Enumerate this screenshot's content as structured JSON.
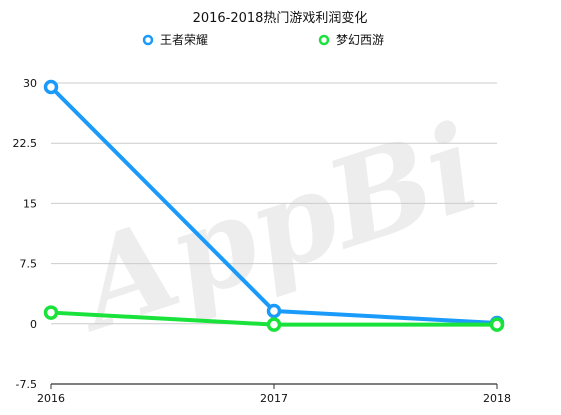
{
  "chart_data": {
    "type": "line",
    "title": "2016-2018热门游戏利润变化",
    "x": [
      "2016",
      "2017",
      "2018"
    ],
    "series": [
      {
        "name": "王者荣耀",
        "color": "#1a9bfc",
        "values": [
          29.5,
          1.6,
          0.1
        ]
      },
      {
        "name": "梦幻西游",
        "color": "#19e23b",
        "values": [
          1.4,
          -0.1,
          -0.1
        ]
      }
    ],
    "ylim": [
      -7.5,
      30
    ],
    "yticks": [
      "-7.5",
      "0",
      "7.5",
      "15",
      "22.5",
      "30"
    ],
    "grid": true,
    "legend": "top-center",
    "watermark": "AppBi"
  }
}
